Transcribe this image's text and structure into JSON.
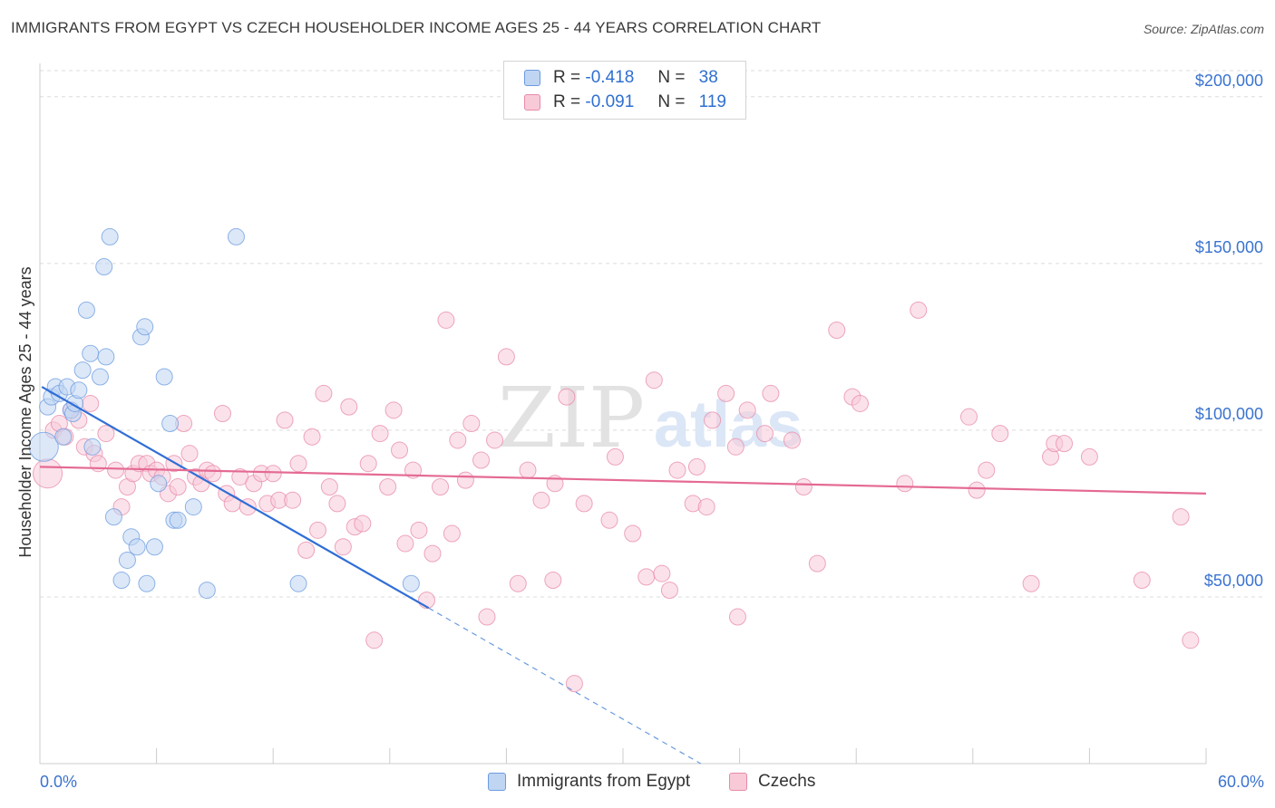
{
  "title": "IMMIGRANTS FROM EGYPT VS CZECH HOUSEHOLDER INCOME AGES 25 - 44 YEARS CORRELATION CHART",
  "source": "Source: ZipAtlas.com",
  "watermark": {
    "zip": "ZIP",
    "atlas": "atlas"
  },
  "legend_top": [
    {
      "r_label": "R =",
      "r_value": "-0.418",
      "n_label": "N =",
      "n_value": "38",
      "color": "#6b9be0"
    },
    {
      "r_label": "R =",
      "r_value": "-0.091",
      "n_label": "N =",
      "n_value": "119",
      "color": "#e88aa8"
    }
  ],
  "legend_bottom": [
    {
      "label": "Immigrants from Egypt",
      "color": "#6b9be0"
    },
    {
      "label": "Czechs",
      "color": "#e88aa8"
    }
  ],
  "chart_data": {
    "type": "scatter",
    "xlabel": "",
    "ylabel": "Householder Income Ages 25 - 44 years",
    "xlim": [
      0,
      60
    ],
    "ylim": [
      0,
      210000
    ],
    "x_tick_labels": {
      "min": "0.0%",
      "max": "60.0%"
    },
    "y_ticks": [
      {
        "value": 50000,
        "label": "$50,000"
      },
      {
        "value": 100000,
        "label": "$100,000"
      },
      {
        "value": 150000,
        "label": "$150,000"
      },
      {
        "value": 200000,
        "label": "$200,000"
      }
    ],
    "series": [
      {
        "name": "Immigrants from Egypt",
        "color": "#6b9be0",
        "fill": "#c0d5f2",
        "trend": {
          "x_start": 0.1,
          "y_start": 113000,
          "x_solid_end": 20,
          "x_end": 34,
          "y_end": 0
        },
        "points": [
          [
            0.2,
            95000,
            16
          ],
          [
            0.4,
            107000,
            9
          ],
          [
            0.6,
            110000,
            9
          ],
          [
            0.8,
            113000,
            9
          ],
          [
            1.0,
            111000,
            9
          ],
          [
            1.2,
            98000,
            9
          ],
          [
            1.4,
            113000,
            9
          ],
          [
            1.6,
            106000,
            9
          ],
          [
            1.7,
            105000,
            9
          ],
          [
            1.8,
            108000,
            9
          ],
          [
            2.0,
            112000,
            9
          ],
          [
            2.2,
            118000,
            9
          ],
          [
            2.4,
            136000,
            9
          ],
          [
            2.6,
            123000,
            9
          ],
          [
            2.7,
            95000,
            9
          ],
          [
            3.1,
            116000,
            9
          ],
          [
            3.3,
            149000,
            9
          ],
          [
            3.4,
            122000,
            9
          ],
          [
            3.6,
            158000,
            9
          ],
          [
            3.8,
            74000,
            9
          ],
          [
            4.2,
            55000,
            9
          ],
          [
            4.5,
            61000,
            9
          ],
          [
            4.7,
            68000,
            9
          ],
          [
            5.0,
            65000,
            9
          ],
          [
            5.2,
            128000,
            9
          ],
          [
            5.4,
            131000,
            9
          ],
          [
            5.5,
            54000,
            9
          ],
          [
            5.9,
            65000,
            9
          ],
          [
            6.1,
            84000,
            9
          ],
          [
            6.4,
            116000,
            9
          ],
          [
            6.7,
            102000,
            9
          ],
          [
            6.9,
            73000,
            9
          ],
          [
            7.1,
            73000,
            9
          ],
          [
            7.9,
            77000,
            9
          ],
          [
            8.6,
            52000,
            9
          ],
          [
            10.1,
            158000,
            9
          ],
          [
            13.3,
            54000,
            9
          ],
          [
            19.1,
            54000,
            9
          ]
        ]
      },
      {
        "name": "Czechs",
        "color": "#e88aa8",
        "fill": "#f8cad8",
        "trend": {
          "x_start": 0,
          "y_start": 89000,
          "x_end": 60,
          "y_end": 81000
        },
        "points": [
          [
            0.4,
            87000,
            16
          ],
          [
            0.7,
            100000,
            9
          ],
          [
            1.0,
            102000,
            9
          ],
          [
            1.3,
            98000,
            9
          ],
          [
            1.6,
            106000,
            9
          ],
          [
            2.0,
            103000,
            9
          ],
          [
            2.3,
            95000,
            9
          ],
          [
            2.6,
            108000,
            9
          ],
          [
            2.8,
            93000,
            9
          ],
          [
            3.0,
            90000,
            9
          ],
          [
            3.4,
            99000,
            9
          ],
          [
            3.9,
            88000,
            9
          ],
          [
            4.2,
            77000,
            9
          ],
          [
            4.5,
            83000,
            9
          ],
          [
            4.8,
            87000,
            9
          ],
          [
            5.1,
            90000,
            9
          ],
          [
            5.5,
            90000,
            9
          ],
          [
            5.7,
            87000,
            9
          ],
          [
            6.0,
            88000,
            9
          ],
          [
            6.3,
            86000,
            9
          ],
          [
            6.6,
            81000,
            9
          ],
          [
            6.9,
            90000,
            9
          ],
          [
            7.1,
            83000,
            9
          ],
          [
            7.4,
            102000,
            9
          ],
          [
            7.7,
            93000,
            9
          ],
          [
            8.0,
            86000,
            9
          ],
          [
            8.3,
            84000,
            9
          ],
          [
            8.6,
            88000,
            9
          ],
          [
            8.9,
            87000,
            9
          ],
          [
            9.4,
            105000,
            9
          ],
          [
            9.6,
            81000,
            9
          ],
          [
            9.9,
            78000,
            9
          ],
          [
            10.3,
            86000,
            9
          ],
          [
            10.7,
            77000,
            9
          ],
          [
            11.0,
            84000,
            9
          ],
          [
            11.4,
            87000,
            9
          ],
          [
            11.7,
            78000,
            9
          ],
          [
            12.0,
            87000,
            9
          ],
          [
            12.3,
            79000,
            9
          ],
          [
            12.6,
            103000,
            9
          ],
          [
            13.0,
            79000,
            9
          ],
          [
            13.3,
            90000,
            9
          ],
          [
            13.7,
            64000,
            9
          ],
          [
            14.0,
            98000,
            9
          ],
          [
            14.3,
            70000,
            9
          ],
          [
            14.6,
            111000,
            9
          ],
          [
            14.9,
            83000,
            9
          ],
          [
            15.3,
            78000,
            9
          ],
          [
            15.6,
            65000,
            9
          ],
          [
            15.9,
            107000,
            9
          ],
          [
            16.2,
            71000,
            9
          ],
          [
            16.6,
            72000,
            9
          ],
          [
            16.9,
            90000,
            9
          ],
          [
            17.2,
            37000,
            9
          ],
          [
            17.5,
            99000,
            9
          ],
          [
            17.9,
            83000,
            9
          ],
          [
            18.2,
            106000,
            9
          ],
          [
            18.5,
            94000,
            9
          ],
          [
            18.8,
            66000,
            9
          ],
          [
            19.2,
            88000,
            9
          ],
          [
            19.5,
            70000,
            9
          ],
          [
            19.9,
            49000,
            9
          ],
          [
            20.2,
            63000,
            9
          ],
          [
            20.6,
            83000,
            9
          ],
          [
            20.9,
            133000,
            9
          ],
          [
            21.2,
            69000,
            9
          ],
          [
            21.5,
            97000,
            9
          ],
          [
            21.9,
            85000,
            9
          ],
          [
            22.2,
            102000,
            9
          ],
          [
            22.7,
            91000,
            9
          ],
          [
            23.0,
            44000,
            9
          ],
          [
            23.4,
            97000,
            9
          ],
          [
            24.0,
            122000,
            9
          ],
          [
            24.6,
            54000,
            9
          ],
          [
            25.1,
            88000,
            9
          ],
          [
            25.8,
            79000,
            9
          ],
          [
            26.4,
            55000,
            9
          ],
          [
            26.5,
            84000,
            9
          ],
          [
            27.1,
            110000,
            9
          ],
          [
            27.5,
            24000,
            9
          ],
          [
            28.0,
            78000,
            9
          ],
          [
            29.3,
            73000,
            9
          ],
          [
            29.6,
            92000,
            9
          ],
          [
            30.5,
            69000,
            9
          ],
          [
            31.2,
            56000,
            9
          ],
          [
            31.6,
            115000,
            9
          ],
          [
            32.0,
            57000,
            9
          ],
          [
            32.4,
            52000,
            9
          ],
          [
            32.8,
            88000,
            9
          ],
          [
            33.6,
            78000,
            9
          ],
          [
            33.8,
            89000,
            9
          ],
          [
            34.3,
            77000,
            9
          ],
          [
            34.6,
            103000,
            9
          ],
          [
            35.3,
            111000,
            9
          ],
          [
            35.8,
            95000,
            9
          ],
          [
            35.9,
            44000,
            9
          ],
          [
            36.4,
            106000,
            9
          ],
          [
            37.3,
            99000,
            9
          ],
          [
            37.6,
            111000,
            9
          ],
          [
            38.7,
            97000,
            9
          ],
          [
            39.3,
            83000,
            9
          ],
          [
            40.0,
            60000,
            9
          ],
          [
            41.0,
            130000,
            9
          ],
          [
            41.8,
            110000,
            9
          ],
          [
            42.2,
            108000,
            9
          ],
          [
            44.5,
            84000,
            9
          ],
          [
            45.2,
            136000,
            9
          ],
          [
            47.8,
            104000,
            9
          ],
          [
            48.2,
            82000,
            9
          ],
          [
            48.7,
            88000,
            9
          ],
          [
            49.4,
            99000,
            9
          ],
          [
            51.0,
            54000,
            9
          ],
          [
            52.0,
            92000,
            9
          ],
          [
            52.2,
            96000,
            9
          ],
          [
            52.7,
            96000,
            9
          ],
          [
            54.0,
            92000,
            9
          ],
          [
            56.7,
            55000,
            9
          ],
          [
            58.7,
            74000,
            9
          ],
          [
            59.2,
            37000,
            9
          ]
        ]
      }
    ]
  }
}
